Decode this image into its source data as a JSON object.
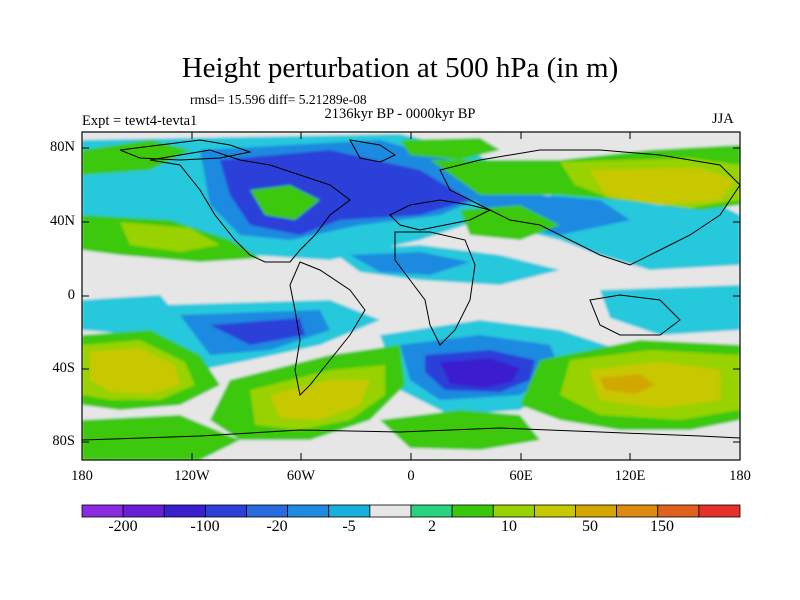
{
  "title": "Height perturbation at 500 hPa (in m)",
  "stats_line": "rmsd= 15.596 diff= 5.21289e-08",
  "period": "2136kyr BP - 0000kyr BP",
  "experiment": "Expt = tewt4-tevta1",
  "season": "JJA",
  "lat_ticks": [
    "80N",
    "40N",
    "0",
    "40S",
    "80S"
  ],
  "lon_ticks": [
    "180",
    "120W",
    "60W",
    "0",
    "60E",
    "120E",
    "180"
  ],
  "colorbar": {
    "colors": [
      "#8a2be2",
      "#6a1fd6",
      "#3a1fcf",
      "#2b3fd9",
      "#2a6ae0",
      "#1e8ae0",
      "#15b0dc",
      "#e6e6e6",
      "#28d27e",
      "#3ac80e",
      "#98d200",
      "#c8c800",
      "#d2a800",
      "#dc8a10",
      "#e0601e",
      "#e6302a"
    ],
    "labels": [
      "-200",
      "-100",
      "-20",
      "-5",
      "2",
      "10",
      "50",
      "150"
    ]
  },
  "map_colors": {
    "zero": "#e6e6e6",
    "neg_light": "#28c8dc",
    "neg_mid": "#1e8ae0",
    "neg_deep": "#2b3fd9",
    "neg_strong": "#3a1fcf",
    "pos_light": "#3ac80e",
    "pos_mid": "#98d200",
    "pos_deep": "#c8c800",
    "pos_strong": "#d2a800",
    "pos_peak": "#dc8a10"
  }
}
